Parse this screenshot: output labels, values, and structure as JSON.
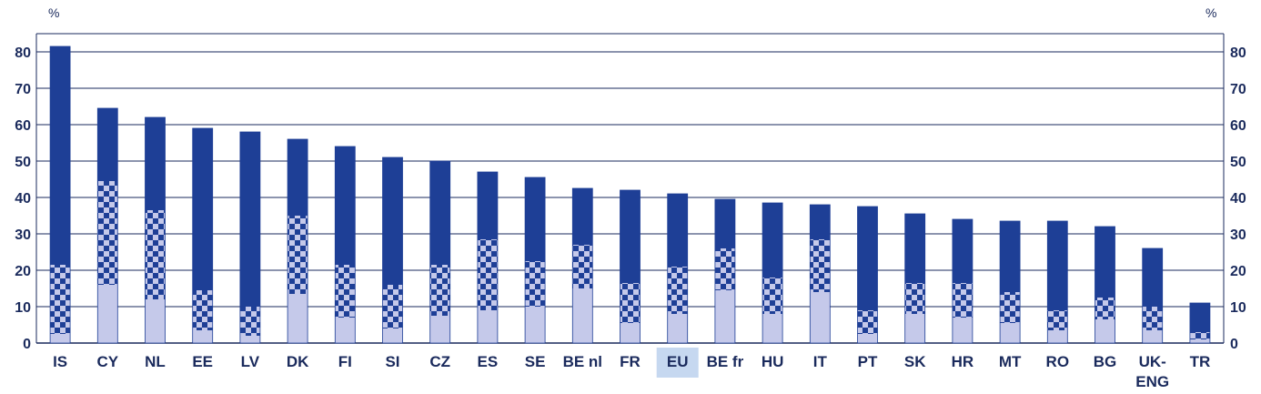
{
  "chart_data": {
    "type": "bar",
    "stacked": true,
    "unit_left": "%",
    "unit_right": "%",
    "ylim": [
      0,
      85
    ],
    "yticks": [
      0,
      10,
      20,
      30,
      40,
      50,
      60,
      70,
      80
    ],
    "grid": true,
    "categories": [
      {
        "label": "IS"
      },
      {
        "label": "CY"
      },
      {
        "label": "NL"
      },
      {
        "label": "EE"
      },
      {
        "label": "LV"
      },
      {
        "label": "DK"
      },
      {
        "label": "FI"
      },
      {
        "label": "SI"
      },
      {
        "label": "CZ"
      },
      {
        "label": "ES"
      },
      {
        "label": "SE"
      },
      {
        "label": "BE nl"
      },
      {
        "label": "FR"
      },
      {
        "label": "EU",
        "highlight": true
      },
      {
        "label": "BE fr"
      },
      {
        "label": "HU"
      },
      {
        "label": "IT"
      },
      {
        "label": "PT"
      },
      {
        "label": "SK"
      },
      {
        "label": "HR"
      },
      {
        "label": "MT"
      },
      {
        "label": "RO"
      },
      {
        "label": "BG"
      },
      {
        "label": "UK-",
        "label2": "ENG"
      },
      {
        "label": "TR"
      }
    ],
    "series": [
      {
        "color": "#c5c9ea",
        "pattern": "solid",
        "values": [
          2.5,
          16,
          12,
          3.5,
          2,
          13.5,
          7,
          4,
          7.5,
          9,
          10,
          15,
          5.5,
          8,
          14.5,
          8,
          14,
          2.5,
          8,
          7,
          5.5,
          3.5,
          6.5,
          3.5,
          1
        ]
      },
      {
        "color": "#1e3f96",
        "pattern": "checkered",
        "values": [
          19,
          28.5,
          24.5,
          11,
          8,
          21.5,
          14.5,
          12,
          14,
          19.5,
          12.5,
          12,
          11,
          13,
          11.5,
          10,
          14.5,
          6.5,
          8.5,
          9.5,
          8.5,
          5.5,
          6,
          6.5,
          2
        ]
      },
      {
        "color": "#1e3f96",
        "pattern": "solid",
        "values": [
          60,
          20,
          25.5,
          44.5,
          48,
          21,
          32.5,
          35,
          28.5,
          18.5,
          23,
          15.5,
          25.5,
          20,
          13.5,
          20.5,
          9.5,
          28.5,
          19,
          17.5,
          19.5,
          24.5,
          19.5,
          16,
          8
        ]
      }
    ],
    "colors": {
      "axis": "#1a2a5c",
      "grid": "#1a2a5c",
      "highlight_bg": "#c6d8f0",
      "highlight_text": "#3d5fa8",
      "bar_dark": "#1e3f96",
      "bar_light": "#c5c9ea"
    }
  }
}
